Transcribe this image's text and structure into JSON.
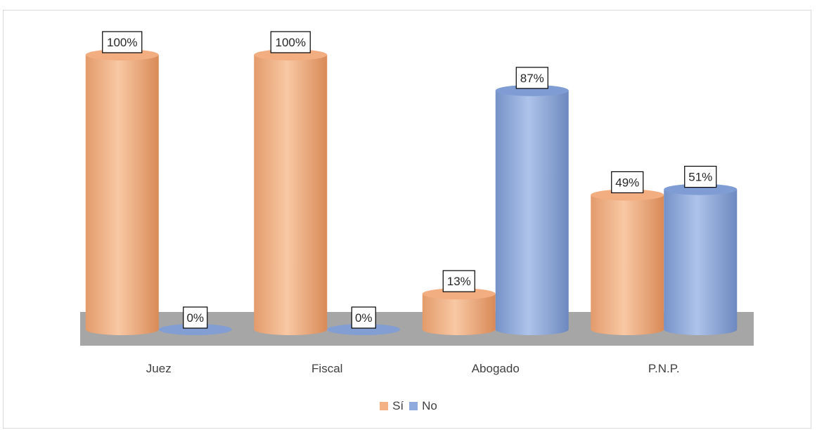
{
  "chart_data": {
    "type": "bar",
    "categories": [
      "Juez",
      "Fiscal",
      "Abogado",
      "P.N.P."
    ],
    "series": [
      {
        "name": "Sí",
        "values": [
          100,
          100,
          13,
          49
        ],
        "color": "#f4b183"
      },
      {
        "name": "No",
        "values": [
          0,
          0,
          87,
          51
        ],
        "color": "#8faadc"
      }
    ],
    "data_labels": {
      "Sí": [
        "100%",
        "100%",
        "13%",
        "49%"
      ],
      "No": [
        "0%",
        "0%",
        "87%",
        "51%"
      ]
    },
    "ylim": [
      0,
      100
    ],
    "title": "",
    "xlabel": "",
    "ylabel": "",
    "grid": false,
    "legend_position": "bottom",
    "style": "3d-cylinder",
    "floor_color": "#a6a6a6"
  }
}
